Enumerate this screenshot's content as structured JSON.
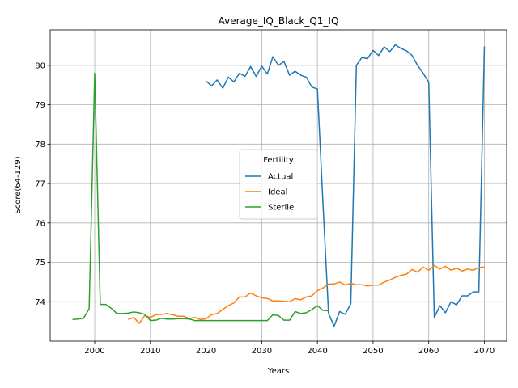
{
  "chart_data": {
    "type": "line",
    "title": "Average_IQ_Black_Q1_IQ",
    "xlabel": "Years",
    "ylabel": "Score(64-129)",
    "xlim": [
      1992,
      2074
    ],
    "ylim": [
      73.0,
      80.9
    ],
    "xticks": [
      2000,
      2010,
      2020,
      2030,
      2040,
      2050,
      2060,
      2070
    ],
    "yticks": [
      74,
      75,
      76,
      77,
      78,
      79,
      80
    ],
    "grid": true,
    "legend": {
      "title": "Fertility",
      "placement": "center-right"
    },
    "series": [
      {
        "name": "Actual",
        "color": "#1f77b4",
        "points": [
          [
            2020,
            79.6
          ],
          [
            2021,
            79.48
          ],
          [
            2022,
            79.63
          ],
          [
            2023,
            79.42
          ],
          [
            2024,
            79.7
          ],
          [
            2025,
            79.58
          ],
          [
            2026,
            79.8
          ],
          [
            2027,
            79.72
          ],
          [
            2028,
            79.97
          ],
          [
            2029,
            79.72
          ],
          [
            2030,
            79.98
          ],
          [
            2031,
            79.78
          ],
          [
            2032,
            80.22
          ],
          [
            2033,
            80.0
          ],
          [
            2034,
            80.1
          ],
          [
            2035,
            79.75
          ],
          [
            2036,
            79.85
          ],
          [
            2037,
            79.75
          ],
          [
            2038,
            79.7
          ],
          [
            2039,
            79.45
          ],
          [
            2040,
            79.4
          ],
          [
            2041,
            76.5
          ],
          [
            2042,
            73.7
          ],
          [
            2043,
            73.38
          ],
          [
            2044,
            73.75
          ],
          [
            2045,
            73.68
          ],
          [
            2046,
            73.95
          ],
          [
            2047,
            80.0
          ],
          [
            2048,
            80.2
          ],
          [
            2049,
            80.17
          ],
          [
            2050,
            80.38
          ],
          [
            2051,
            80.25
          ],
          [
            2052,
            80.47
          ],
          [
            2053,
            80.35
          ],
          [
            2054,
            80.52
          ],
          [
            2055,
            80.43
          ],
          [
            2056,
            80.37
          ],
          [
            2057,
            80.25
          ],
          [
            2058,
            80.0
          ],
          [
            2059,
            79.8
          ],
          [
            2060,
            79.57
          ],
          [
            2061,
            73.6
          ],
          [
            2062,
            73.9
          ],
          [
            2063,
            73.72
          ],
          [
            2064,
            74.0
          ],
          [
            2065,
            73.92
          ],
          [
            2066,
            74.15
          ],
          [
            2067,
            74.15
          ],
          [
            2068,
            74.25
          ],
          [
            2069,
            74.25
          ],
          [
            2070,
            80.48
          ]
        ]
      },
      {
        "name": "Ideal",
        "color": "#ff7f0e",
        "points": [
          [
            2006,
            73.55
          ],
          [
            2007,
            73.6
          ],
          [
            2008,
            73.45
          ],
          [
            2009,
            73.65
          ],
          [
            2010,
            73.6
          ],
          [
            2011,
            73.67
          ],
          [
            2012,
            73.68
          ],
          [
            2013,
            73.7
          ],
          [
            2014,
            73.67
          ],
          [
            2015,
            73.63
          ],
          [
            2016,
            73.63
          ],
          [
            2017,
            73.57
          ],
          [
            2018,
            73.6
          ],
          [
            2019,
            73.55
          ],
          [
            2020,
            73.57
          ],
          [
            2021,
            73.67
          ],
          [
            2022,
            73.7
          ],
          [
            2023,
            73.8
          ],
          [
            2024,
            73.9
          ],
          [
            2025,
            73.97
          ],
          [
            2026,
            74.12
          ],
          [
            2027,
            74.12
          ],
          [
            2028,
            74.22
          ],
          [
            2029,
            74.15
          ],
          [
            2030,
            74.1
          ],
          [
            2031,
            74.08
          ],
          [
            2032,
            74.02
          ],
          [
            2033,
            74.02
          ],
          [
            2034,
            74.01
          ],
          [
            2035,
            74.0
          ],
          [
            2036,
            74.08
          ],
          [
            2037,
            74.05
          ],
          [
            2038,
            74.12
          ],
          [
            2039,
            74.15
          ],
          [
            2040,
            74.28
          ],
          [
            2041,
            74.35
          ],
          [
            2042,
            74.45
          ],
          [
            2043,
            74.45
          ],
          [
            2044,
            74.5
          ],
          [
            2045,
            74.42
          ],
          [
            2046,
            74.47
          ],
          [
            2047,
            74.43
          ],
          [
            2048,
            74.43
          ],
          [
            2049,
            74.4
          ],
          [
            2050,
            74.42
          ],
          [
            2051,
            74.42
          ],
          [
            2052,
            74.5
          ],
          [
            2053,
            74.55
          ],
          [
            2054,
            74.62
          ],
          [
            2055,
            74.67
          ],
          [
            2056,
            74.7
          ],
          [
            2057,
            74.82
          ],
          [
            2058,
            74.75
          ],
          [
            2059,
            74.88
          ],
          [
            2060,
            74.8
          ],
          [
            2061,
            74.92
          ],
          [
            2062,
            74.83
          ],
          [
            2063,
            74.9
          ],
          [
            2064,
            74.8
          ],
          [
            2065,
            74.85
          ],
          [
            2066,
            74.78
          ],
          [
            2067,
            74.83
          ],
          [
            2068,
            74.8
          ],
          [
            2069,
            74.87
          ],
          [
            2070,
            74.88
          ]
        ]
      },
      {
        "name": "Sterile",
        "color": "#2ca02c",
        "points": [
          [
            1996,
            73.55
          ],
          [
            1997,
            73.56
          ],
          [
            1998,
            73.58
          ],
          [
            1999,
            73.82
          ],
          [
            2000,
            79.8
          ],
          [
            2001,
            73.93
          ],
          [
            2002,
            73.93
          ],
          [
            2003,
            73.83
          ],
          [
            2004,
            73.7
          ],
          [
            2005,
            73.7
          ],
          [
            2006,
            73.71
          ],
          [
            2007,
            73.74
          ],
          [
            2008,
            73.72
          ],
          [
            2009,
            73.68
          ],
          [
            2010,
            73.52
          ],
          [
            2011,
            73.53
          ],
          [
            2012,
            73.58
          ],
          [
            2013,
            73.56
          ],
          [
            2014,
            73.56
          ],
          [
            2015,
            73.57
          ],
          [
            2016,
            73.57
          ],
          [
            2017,
            73.56
          ],
          [
            2018,
            73.52
          ],
          [
            2019,
            73.52
          ],
          [
            2020,
            73.52
          ],
          [
            2021,
            73.52
          ],
          [
            2022,
            73.52
          ],
          [
            2023,
            73.52
          ],
          [
            2024,
            73.52
          ],
          [
            2025,
            73.52
          ],
          [
            2026,
            73.52
          ],
          [
            2027,
            73.52
          ],
          [
            2028,
            73.52
          ],
          [
            2029,
            73.52
          ],
          [
            2030,
            73.52
          ],
          [
            2031,
            73.52
          ],
          [
            2032,
            73.67
          ],
          [
            2033,
            73.65
          ],
          [
            2034,
            73.53
          ],
          [
            2035,
            73.53
          ],
          [
            2036,
            73.75
          ],
          [
            2037,
            73.7
          ],
          [
            2038,
            73.72
          ],
          [
            2039,
            73.8
          ],
          [
            2040,
            73.9
          ],
          [
            2041,
            73.78
          ],
          [
            2042,
            73.77
          ]
        ]
      }
    ]
  }
}
